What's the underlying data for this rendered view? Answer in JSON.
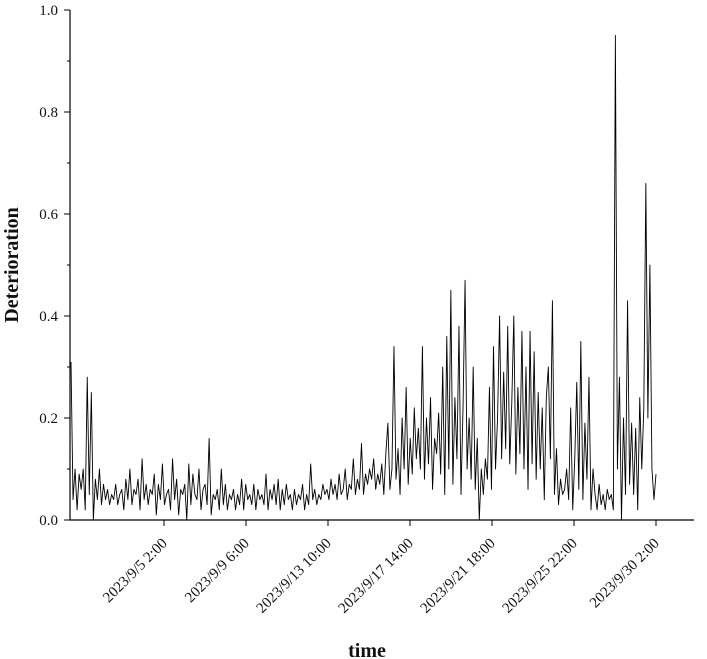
{
  "chart_data": {
    "type": "line",
    "title": "",
    "xlabel": "time",
    "ylabel": "Deterioration",
    "ylim": [
      0,
      1.0
    ],
    "y_ticks": [
      "0.0",
      "0.2",
      "0.4",
      "0.6",
      "0.8",
      "1.0"
    ],
    "x_tick_labels": [
      "2023/9/5 2:00",
      "2023/9/9 6:00",
      "2023/9/13 10:00",
      "2023/9/17 14:00",
      "2023/9/21 18:00",
      "2023/9/25 22:00",
      "2023/9/30 2:00"
    ],
    "grid": false,
    "series": [
      {
        "color": "#000000",
        "values": [
          0.31,
          0.04,
          0.1,
          0.02,
          0.09,
          0.06,
          0.1,
          0.02,
          0.28,
          0.05,
          0.25,
          0.0,
          0.08,
          0.04,
          0.1,
          0.03,
          0.07,
          0.04,
          0.06,
          0.03,
          0.05,
          0.04,
          0.07,
          0.03,
          0.05,
          0.06,
          0.02,
          0.08,
          0.04,
          0.1,
          0.03,
          0.06,
          0.05,
          0.08,
          0.02,
          0.12,
          0.04,
          0.07,
          0.03,
          0.06,
          0.05,
          0.09,
          0.01,
          0.07,
          0.04,
          0.11,
          0.03,
          0.05,
          0.06,
          0.02,
          0.12,
          0.04,
          0.08,
          0.01,
          0.06,
          0.05,
          0.07,
          0.0,
          0.11,
          0.03,
          0.09,
          0.05,
          0.04,
          0.1,
          0.02,
          0.06,
          0.07,
          0.03,
          0.16,
          0.01,
          0.05,
          0.04,
          0.06,
          0.02,
          0.1,
          0.03,
          0.07,
          0.02,
          0.05,
          0.04,
          0.06,
          0.02,
          0.05,
          0.03,
          0.08,
          0.02,
          0.07,
          0.04,
          0.05,
          0.03,
          0.07,
          0.02,
          0.06,
          0.04,
          0.05,
          0.03,
          0.09,
          0.02,
          0.06,
          0.04,
          0.07,
          0.03,
          0.08,
          0.02,
          0.06,
          0.03,
          0.07,
          0.04,
          0.05,
          0.02,
          0.06,
          0.03,
          0.05,
          0.04,
          0.07,
          0.02,
          0.05,
          0.03,
          0.11,
          0.04,
          0.06,
          0.03,
          0.05,
          0.04,
          0.07,
          0.05,
          0.06,
          0.04,
          0.08,
          0.05,
          0.07,
          0.04,
          0.09,
          0.05,
          0.06,
          0.1,
          0.04,
          0.07,
          0.06,
          0.12,
          0.05,
          0.08,
          0.06,
          0.15,
          0.05,
          0.09,
          0.07,
          0.1,
          0.08,
          0.12,
          0.06,
          0.09,
          0.07,
          0.11,
          0.05,
          0.13,
          0.19,
          0.06,
          0.1,
          0.34,
          0.08,
          0.14,
          0.05,
          0.2,
          0.1,
          0.26,
          0.07,
          0.16,
          0.09,
          0.22,
          0.12,
          0.18,
          0.1,
          0.34,
          0.08,
          0.2,
          0.11,
          0.24,
          0.06,
          0.16,
          0.13,
          0.21,
          0.09,
          0.3,
          0.05,
          0.36,
          0.1,
          0.45,
          0.07,
          0.24,
          0.12,
          0.38,
          0.05,
          0.22,
          0.47,
          0.1,
          0.2,
          0.08,
          0.3,
          0.06,
          0.16,
          0.0,
          0.1,
          0.05,
          0.12,
          0.08,
          0.26,
          0.06,
          0.34,
          0.1,
          0.2,
          0.4,
          0.12,
          0.29,
          0.14,
          0.38,
          0.11,
          0.23,
          0.4,
          0.09,
          0.26,
          0.13,
          0.37,
          0.1,
          0.3,
          0.06,
          0.37,
          0.11,
          0.33,
          0.08,
          0.25,
          0.1,
          0.22,
          0.04,
          0.24,
          0.3,
          0.12,
          0.43,
          0.05,
          0.14,
          0.03,
          0.08,
          0.05,
          0.06,
          0.1,
          0.04,
          0.22,
          0.02,
          0.12,
          0.27,
          0.06,
          0.35,
          0.04,
          0.19,
          0.08,
          0.28,
          0.02,
          0.1,
          0.05,
          0.02,
          0.07,
          0.03,
          0.05,
          0.02,
          0.06,
          0.04,
          0.05,
          0.02,
          0.95,
          0.1,
          0.28,
          0.0,
          0.2,
          0.05,
          0.43,
          0.07,
          0.19,
          0.05,
          0.18,
          0.02,
          0.24,
          0.1,
          0.22,
          0.66,
          0.2,
          0.5,
          0.1,
          0.04,
          0.09
        ]
      }
    ]
  }
}
